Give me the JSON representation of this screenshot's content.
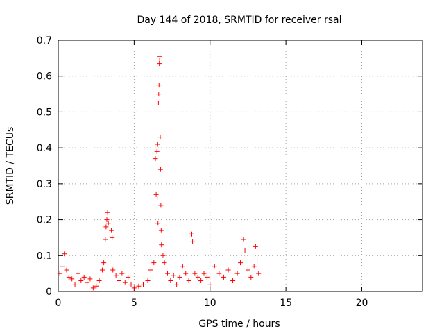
{
  "chart_data": {
    "type": "scatter",
    "title": "Day 144 of 2018, SRMTID for receiver rsal",
    "xlabel": "GPS time / hours",
    "ylabel": "SRMTID / TECUs",
    "xlim": [
      0,
      24
    ],
    "ylim": [
      0,
      0.7
    ],
    "x_ticks": [
      "0",
      "5",
      "10",
      "15",
      "20"
    ],
    "y_ticks": [
      "0",
      "0.1",
      "0.2",
      "0.3",
      "0.4",
      "0.5",
      "0.6",
      "0.7"
    ],
    "grid": true,
    "marker": "plus",
    "series_color": "#ff0000",
    "series": [
      {
        "points": [
          [
            0.1,
            0.05
          ],
          [
            0.25,
            0.07
          ],
          [
            0.4,
            0.105
          ],
          [
            0.55,
            0.06
          ],
          [
            0.7,
            0.04
          ],
          [
            0.9,
            0.035
          ],
          [
            1.1,
            0.02
          ],
          [
            1.3,
            0.05
          ],
          [
            1.5,
            0.03
          ],
          [
            1.7,
            0.04
          ],
          [
            1.9,
            0.025
          ],
          [
            2.1,
            0.035
          ],
          [
            2.3,
            0.01
          ],
          [
            2.5,
            0.015
          ],
          [
            2.7,
            0.03
          ],
          [
            2.9,
            0.06
          ],
          [
            3.0,
            0.08
          ],
          [
            3.1,
            0.145
          ],
          [
            3.15,
            0.18
          ],
          [
            3.2,
            0.2
          ],
          [
            3.25,
            0.22
          ],
          [
            3.3,
            0.19
          ],
          [
            3.5,
            0.17
          ],
          [
            3.55,
            0.15
          ],
          [
            3.6,
            0.06
          ],
          [
            3.8,
            0.045
          ],
          [
            4.0,
            0.03
          ],
          [
            4.2,
            0.05
          ],
          [
            4.4,
            0.025
          ],
          [
            4.6,
            0.04
          ],
          [
            4.8,
            0.02
          ],
          [
            5.0,
            0.01
          ],
          [
            5.3,
            0.015
          ],
          [
            5.6,
            0.02
          ],
          [
            5.9,
            0.03
          ],
          [
            6.1,
            0.06
          ],
          [
            6.3,
            0.08
          ],
          [
            6.4,
            0.37
          ],
          [
            6.45,
            0.27
          ],
          [
            6.5,
            0.39
          ],
          [
            6.52,
            0.26
          ],
          [
            6.55,
            0.41
          ],
          [
            6.57,
            0.19
          ],
          [
            6.6,
            0.525
          ],
          [
            6.62,
            0.55
          ],
          [
            6.64,
            0.575
          ],
          [
            6.66,
            0.635
          ],
          [
            6.68,
            0.645
          ],
          [
            6.7,
            0.655
          ],
          [
            6.72,
            0.43
          ],
          [
            6.74,
            0.34
          ],
          [
            6.76,
            0.24
          ],
          [
            6.78,
            0.17
          ],
          [
            6.8,
            0.13
          ],
          [
            6.9,
            0.1
          ],
          [
            7.0,
            0.08
          ],
          [
            7.2,
            0.05
          ],
          [
            7.4,
            0.03
          ],
          [
            7.6,
            0.045
          ],
          [
            7.8,
            0.02
          ],
          [
            8.0,
            0.04
          ],
          [
            8.2,
            0.07
          ],
          [
            8.4,
            0.05
          ],
          [
            8.6,
            0.03
          ],
          [
            8.8,
            0.16
          ],
          [
            8.85,
            0.14
          ],
          [
            9.0,
            0.05
          ],
          [
            9.2,
            0.04
          ],
          [
            9.4,
            0.03
          ],
          [
            9.6,
            0.05
          ],
          [
            9.8,
            0.04
          ],
          [
            10.0,
            0.02
          ],
          [
            10.3,
            0.07
          ],
          [
            10.6,
            0.05
          ],
          [
            10.9,
            0.04
          ],
          [
            11.2,
            0.06
          ],
          [
            11.5,
            0.03
          ],
          [
            11.8,
            0.05
          ],
          [
            12.0,
            0.08
          ],
          [
            12.2,
            0.145
          ],
          [
            12.3,
            0.115
          ],
          [
            12.5,
            0.06
          ],
          [
            12.7,
            0.04
          ],
          [
            12.9,
            0.07
          ],
          [
            13.0,
            0.125
          ],
          [
            13.1,
            0.09
          ],
          [
            13.2,
            0.05
          ]
        ]
      }
    ]
  }
}
